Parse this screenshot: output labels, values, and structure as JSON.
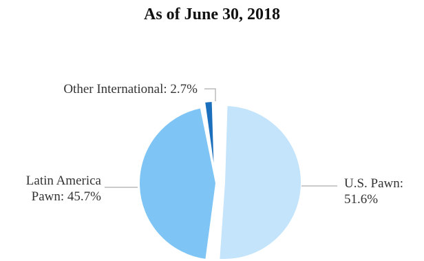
{
  "chart_data": {
    "type": "pie",
    "title": "As of June 30, 2018",
    "slices": [
      {
        "label_lines": [
          "U.S. Pawn:",
          "51.6%"
        ],
        "value": 51.6,
        "color": "#c3e4fb"
      },
      {
        "label_lines": [
          "Latin America",
          "Pawn: 45.7%"
        ],
        "value": 45.7,
        "color": "#7ec5f6"
      },
      {
        "label_lines": [
          "Other International: 2.7%"
        ],
        "value": 2.7,
        "color": "#1b6fbc"
      }
    ],
    "start": "12 o'clock",
    "direction": "clockwise",
    "exploded": true,
    "leader_line_color": "#aaaaaa"
  }
}
